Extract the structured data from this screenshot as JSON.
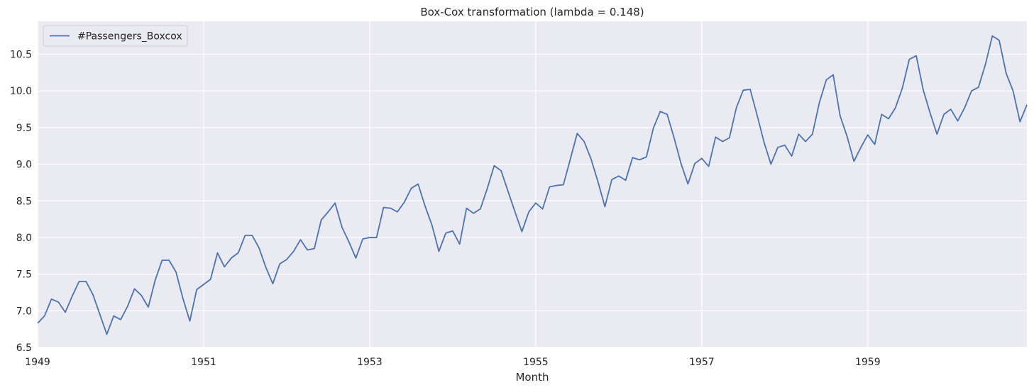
{
  "chart_data": {
    "type": "line",
    "title": "Box-Cox transformation (lambda = 0.148)",
    "xlabel": "Month",
    "ylabel": "",
    "x_tick_labels": [
      "1949",
      "1951",
      "1953",
      "1955",
      "1957",
      "1959"
    ],
    "y_tick_labels": [
      "6.5",
      "7.0",
      "7.5",
      "8.0",
      "8.5",
      "9.0",
      "9.5",
      "10.0",
      "10.5"
    ],
    "ylim": [
      6.5,
      10.95
    ],
    "xlim": [
      "1949-01",
      "1960-12"
    ],
    "grid": true,
    "legend_position": "top-left",
    "x_start": "1949-01",
    "x_frequency": "monthly",
    "series": [
      {
        "name": "#Passengers_Boxcox",
        "color": "#4c72b0",
        "values": [
          6.83,
          6.93,
          7.16,
          7.12,
          6.98,
          7.2,
          7.4,
          7.4,
          7.22,
          6.95,
          6.68,
          6.93,
          6.88,
          7.06,
          7.3,
          7.21,
          7.05,
          7.42,
          7.69,
          7.69,
          7.53,
          7.17,
          6.86,
          7.29,
          7.36,
          7.43,
          7.79,
          7.6,
          7.72,
          7.79,
          8.03,
          8.03,
          7.86,
          7.59,
          7.37,
          7.64,
          7.7,
          7.81,
          7.97,
          7.83,
          7.85,
          8.24,
          8.35,
          8.47,
          8.14,
          7.94,
          7.72,
          7.98,
          8.0,
          8.0,
          8.41,
          8.4,
          8.35,
          8.48,
          8.67,
          8.73,
          8.43,
          8.17,
          7.81,
          8.06,
          8.09,
          7.91,
          8.4,
          8.33,
          8.39,
          8.67,
          8.98,
          8.91,
          8.63,
          8.35,
          8.08,
          8.35,
          8.47,
          8.39,
          8.69,
          8.71,
          8.72,
          9.07,
          9.42,
          9.31,
          9.07,
          8.76,
          8.42,
          8.79,
          8.84,
          8.78,
          9.09,
          9.06,
          9.1,
          9.49,
          9.72,
          9.68,
          9.36,
          9.01,
          8.73,
          9.01,
          9.08,
          8.97,
          9.37,
          9.31,
          9.36,
          9.77,
          10.01,
          10.02,
          9.67,
          9.3,
          9.0,
          9.23,
          9.26,
          9.11,
          9.41,
          9.31,
          9.41,
          9.84,
          10.15,
          10.22,
          9.66,
          9.38,
          9.04,
          9.23,
          9.4,
          9.27,
          9.68,
          9.62,
          9.77,
          10.04,
          10.43,
          10.48,
          10.02,
          9.7,
          9.41,
          9.68,
          9.75,
          9.59,
          9.77,
          10.0,
          10.05,
          10.36,
          10.75,
          10.69,
          10.24,
          10.0,
          9.58,
          9.81
        ]
      }
    ]
  }
}
